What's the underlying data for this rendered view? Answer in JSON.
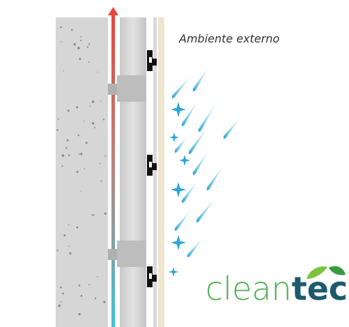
{
  "caption": "Ambiente externo",
  "logo": {
    "light": "clean",
    "bold": "tec"
  }
}
